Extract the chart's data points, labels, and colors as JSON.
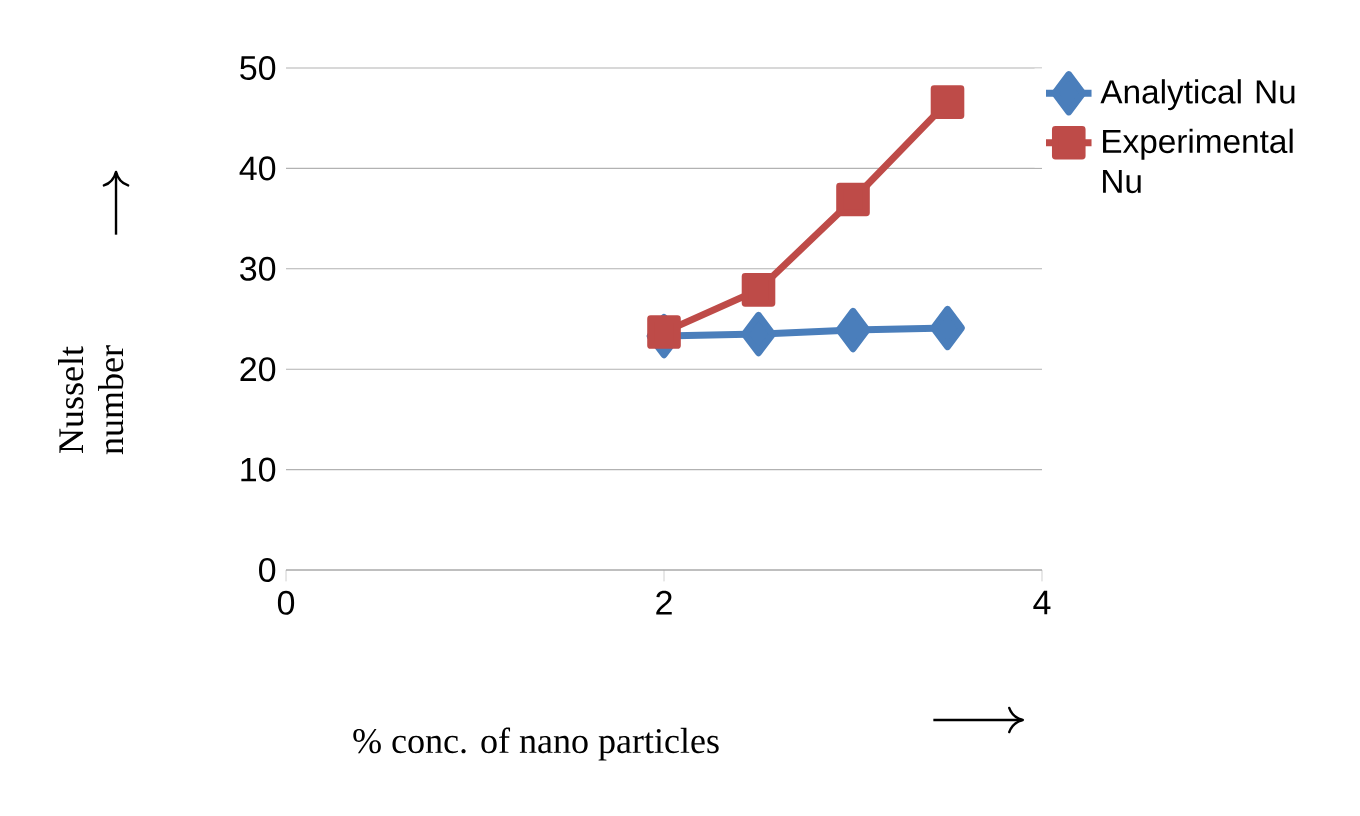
{
  "chart_data": {
    "type": "line",
    "xlabel": "% conc. of  nano particles",
    "ylabel": "Nusselt number",
    "x": [
      2,
      2.5,
      3,
      3.5
    ],
    "xlim": [
      0,
      4
    ],
    "xticks": [
      0,
      2,
      4
    ],
    "ylim": [
      0,
      50
    ],
    "yticks": [
      0,
      10,
      20,
      30,
      40,
      50
    ],
    "grid": "y",
    "legend": "right",
    "series": [
      {
        "name": "Analytical Nu",
        "color": "#4a7ebb",
        "marker": "diamond",
        "values": [
          23.3,
          23.5,
          23.9,
          24.1
        ]
      },
      {
        "name": "Experimental Nu",
        "color": "#be4b48",
        "marker": "square",
        "values": [
          23.7,
          27.9,
          36.9,
          46.6
        ]
      }
    ]
  }
}
